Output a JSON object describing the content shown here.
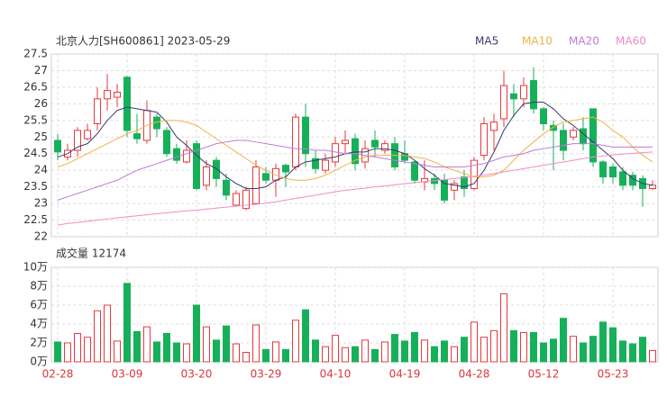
{
  "chart_data": [
    {
      "type": "candlestick",
      "title": "北京人力[SH600861] 2023-05-29",
      "categories": [
        "02-28",
        null,
        null,
        null,
        null,
        null,
        null,
        "03-09",
        null,
        null,
        null,
        null,
        null,
        null,
        "03-20",
        null,
        null,
        null,
        null,
        null,
        null,
        "03-29",
        null,
        null,
        null,
        null,
        null,
        null,
        "04-10",
        null,
        null,
        null,
        null,
        null,
        null,
        "04-19",
        null,
        null,
        null,
        null,
        null,
        null,
        "04-28",
        null,
        null,
        null,
        null,
        null,
        null,
        "05-12",
        null,
        null,
        null,
        null,
        null,
        null,
        "05-23",
        null,
        null,
        null,
        null
      ],
      "open": [
        24.9,
        24.4,
        24.6,
        24.95,
        25.4,
        26.15,
        26.2,
        26.8,
        25.1,
        24.9,
        25.6,
        25.2,
        24.65,
        24.25,
        24.8,
        23.55,
        24.3,
        23.7,
        22.95,
        22.85,
        23.0,
        23.9,
        23.7,
        24.15,
        24.1,
        25.6,
        24.35,
        24.0,
        24.25,
        24.8,
        24.95,
        24.25,
        24.9,
        24.6,
        24.8,
        24.5,
        24.25,
        23.65,
        23.75,
        23.7,
        23.4,
        23.8,
        23.45,
        24.45,
        25.2,
        25.55,
        26.3,
        26.15,
        26.7,
        25.85,
        25.35,
        25.2,
        25.0,
        25.25,
        25.85,
        24.25,
        24.1,
        23.95,
        23.85,
        23.75,
        23.45
      ],
      "high": [
        25.1,
        24.8,
        25.3,
        25.4,
        26.5,
        26.9,
        26.6,
        26.85,
        25.7,
        26.1,
        25.7,
        25.3,
        24.8,
        24.9,
        24.9,
        24.3,
        24.4,
        23.9,
        23.4,
        23.5,
        24.3,
        24.1,
        24.2,
        24.2,
        25.7,
        26.0,
        24.6,
        24.5,
        25.0,
        25.2,
        25.1,
        24.9,
        25.2,
        24.9,
        25.0,
        24.9,
        24.3,
        24.3,
        23.9,
        23.9,
        23.7,
        24.0,
        24.4,
        25.6,
        25.7,
        27.0,
        26.6,
        26.8,
        27.1,
        25.9,
        25.5,
        25.4,
        25.3,
        25.6,
        25.85,
        24.3,
        24.2,
        24.1,
        23.95,
        23.85,
        23.7
      ],
      "low": [
        24.3,
        24.3,
        24.4,
        24.9,
        25.2,
        25.8,
        25.9,
        25.0,
        24.8,
        24.8,
        25.0,
        24.4,
        24.2,
        24.2,
        23.4,
        23.4,
        23.5,
        23.1,
        22.9,
        22.8,
        22.95,
        23.6,
        23.2,
        23.5,
        24.0,
        24.1,
        23.9,
        23.9,
        24.1,
        24.5,
        24.0,
        24.05,
        24.4,
        24.5,
        24.0,
        24.2,
        23.6,
        23.4,
        23.4,
        23.0,
        23.1,
        23.2,
        23.4,
        24.3,
        24.6,
        25.3,
        25.6,
        25.9,
        25.7,
        25.2,
        24.0,
        24.3,
        24.9,
        24.6,
        24.1,
        23.6,
        23.6,
        23.4,
        23.4,
        22.9,
        23.4
      ],
      "close": [
        24.55,
        24.6,
        25.2,
        25.2,
        26.15,
        26.4,
        26.35,
        25.2,
        24.95,
        25.8,
        25.25,
        24.5,
        24.3,
        24.6,
        23.45,
        24.1,
        23.75,
        23.25,
        23.3,
        23.4,
        24.1,
        23.7,
        24.05,
        23.95,
        25.6,
        24.5,
        24.05,
        24.3,
        24.8,
        24.9,
        24.2,
        24.65,
        24.7,
        24.8,
        24.1,
        24.3,
        23.7,
        23.75,
        23.6,
        23.1,
        23.6,
        23.45,
        24.3,
        25.4,
        25.45,
        26.55,
        26.15,
        26.55,
        25.85,
        25.4,
        25.2,
        24.6,
        25.2,
        24.8,
        24.25,
        23.8,
        23.8,
        23.55,
        23.55,
        23.45,
        23.55
      ],
      "up_color": "#e8383d",
      "down_color": "#17b05a",
      "series": [
        {
          "name": "MA5",
          "color": "#3a3a6e",
          "values": [
            24.4,
            24.5,
            24.7,
            24.8,
            25.1,
            25.5,
            25.8,
            25.9,
            25.85,
            25.8,
            25.75,
            25.45,
            25.0,
            24.75,
            24.45,
            24.2,
            24.05,
            23.8,
            23.6,
            23.45,
            23.45,
            23.5,
            23.7,
            23.8,
            24.1,
            24.25,
            24.3,
            24.35,
            24.4,
            24.5,
            24.55,
            24.55,
            24.65,
            24.65,
            24.6,
            24.5,
            24.3,
            24.05,
            23.85,
            23.6,
            23.55,
            23.5,
            23.6,
            24.0,
            24.55,
            25.2,
            25.65,
            26.0,
            26.05,
            26.05,
            25.85,
            25.55,
            25.35,
            25.1,
            24.85,
            24.6,
            24.35,
            24.0,
            23.75,
            23.6,
            23.55
          ]
        },
        {
          "name": "MA10",
          "color": "#f2b244",
          "values": [
            24.1,
            24.2,
            24.35,
            24.5,
            24.65,
            24.8,
            24.95,
            25.1,
            25.2,
            25.35,
            25.45,
            25.5,
            25.5,
            25.45,
            25.35,
            25.15,
            24.95,
            24.75,
            24.55,
            24.35,
            24.15,
            24.0,
            23.85,
            23.75,
            23.7,
            23.7,
            23.75,
            23.85,
            24.0,
            24.15,
            24.3,
            24.4,
            24.45,
            24.45,
            24.45,
            24.45,
            24.4,
            24.35,
            24.25,
            24.1,
            24.0,
            23.9,
            23.8,
            23.8,
            23.85,
            24.0,
            24.3,
            24.6,
            24.85,
            25.1,
            25.3,
            25.45,
            25.5,
            25.55,
            25.6,
            25.45,
            25.2,
            25.0,
            24.7,
            24.45,
            24.25
          ]
        },
        {
          "name": "MA20",
          "color": "#c07ad8",
          "values": [
            23.1,
            23.2,
            23.3,
            23.4,
            23.5,
            23.6,
            23.7,
            23.85,
            24.0,
            24.1,
            24.2,
            24.3,
            24.4,
            24.5,
            24.6,
            24.7,
            24.8,
            24.85,
            24.9,
            24.9,
            24.85,
            24.8,
            24.75,
            24.7,
            24.65,
            24.65,
            24.6,
            24.6,
            24.55,
            24.5,
            24.5,
            24.45,
            24.4,
            24.35,
            24.3,
            24.25,
            24.2,
            24.15,
            24.1,
            24.1,
            24.1,
            24.1,
            24.15,
            24.2,
            24.3,
            24.4,
            24.45,
            24.5,
            24.6,
            24.65,
            24.7,
            24.75,
            24.8,
            24.8,
            24.8,
            24.75,
            24.7,
            24.7,
            24.7,
            24.7,
            24.7
          ]
        },
        {
          "name": "MA60",
          "color": "#f08cc4",
          "values": [
            22.35,
            22.4,
            22.43,
            22.46,
            22.5,
            22.53,
            22.57,
            22.6,
            22.63,
            22.66,
            22.69,
            22.72,
            22.75,
            22.78,
            22.8,
            22.83,
            22.86,
            22.89,
            22.92,
            22.95,
            22.98,
            23.01,
            23.05,
            23.1,
            23.15,
            23.2,
            23.25,
            23.3,
            23.35,
            23.4,
            23.43,
            23.46,
            23.5,
            23.53,
            23.56,
            23.6,
            23.63,
            23.66,
            23.69,
            23.72,
            23.75,
            23.78,
            23.82,
            23.86,
            23.9,
            23.95,
            24.0,
            24.05,
            24.1,
            24.15,
            24.2,
            24.25,
            24.3,
            24.35,
            24.4,
            24.43,
            24.46,
            24.49,
            24.51,
            24.53,
            24.55
          ]
        }
      ],
      "ylim": [
        22,
        27.5
      ],
      "yticks": [
        22,
        22.5,
        23,
        23.5,
        24,
        24.5,
        25,
        25.5,
        26,
        26.5,
        27,
        27.5
      ],
      "grid": true
    },
    {
      "type": "bar",
      "title": "成交量 12174",
      "values": [
        2.1,
        2.0,
        3.0,
        2.6,
        5.4,
        6.0,
        2.2,
        8.3,
        3.2,
        3.7,
        2.1,
        3.0,
        2.0,
        1.9,
        6.0,
        3.7,
        2.3,
        3.8,
        1.9,
        1.0,
        3.9,
        1.3,
        2.1,
        1.3,
        4.4,
        5.5,
        2.3,
        1.6,
        2.8,
        1.5,
        1.6,
        2.3,
        1.3,
        2.1,
        2.9,
        2.2,
        3.1,
        2.3,
        1.6,
        2.2,
        1.6,
        2.6,
        4.2,
        2.6,
        3.3,
        7.2,
        3.3,
        3.1,
        3.1,
        2.0,
        2.4,
        4.6,
        2.7,
        2.0,
        2.7,
        4.2,
        3.6,
        2.2,
        1.9,
        2.6,
        1.2
      ],
      "ylim": [
        0,
        10
      ],
      "yticks": [
        {
          "value": 0,
          "label": "0万"
        },
        {
          "value": 2,
          "label": "2万"
        },
        {
          "value": 4,
          "label": "4万"
        },
        {
          "value": 6,
          "label": "6万"
        },
        {
          "value": 8,
          "label": "8万"
        },
        {
          "value": 10,
          "label": "10万"
        }
      ],
      "grid": true
    }
  ]
}
